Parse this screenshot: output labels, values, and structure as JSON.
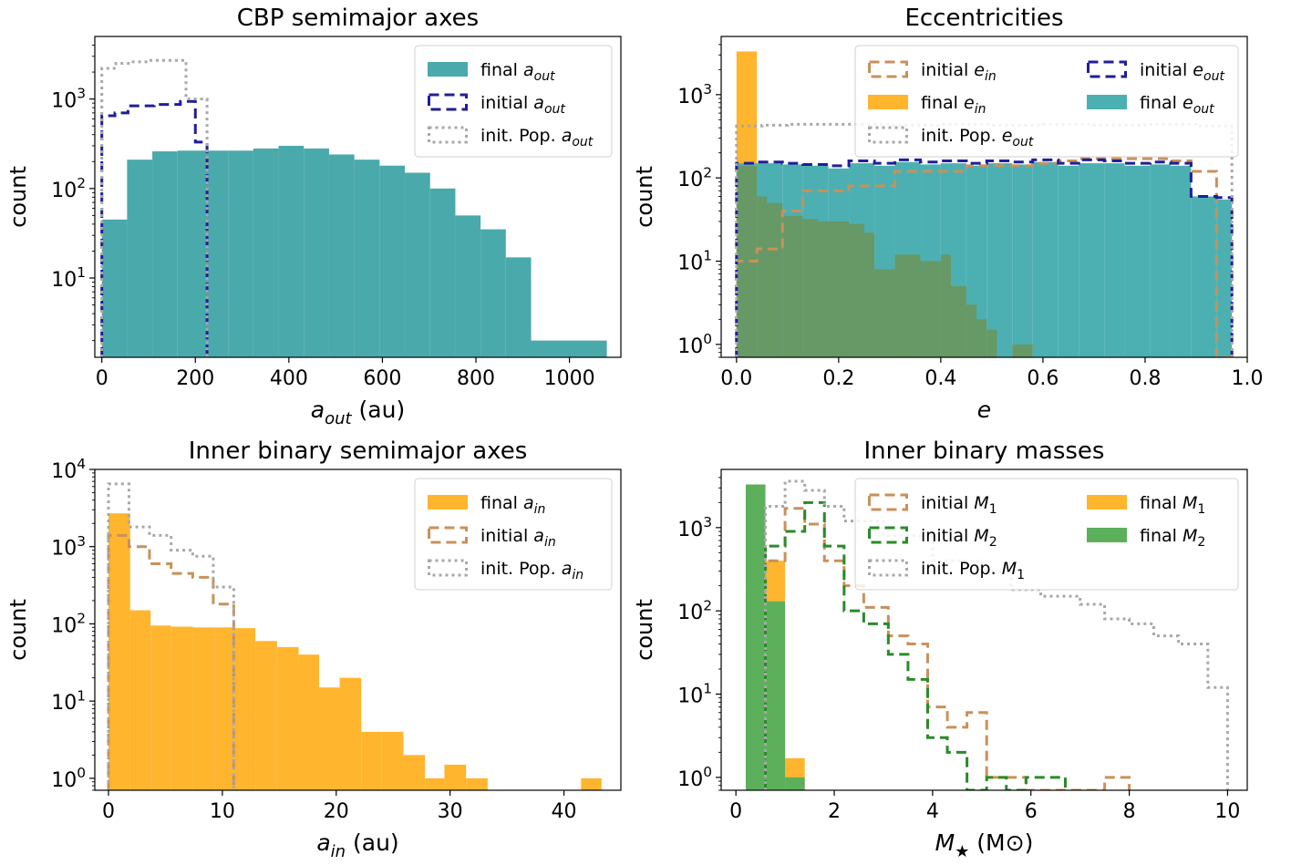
{
  "chart_data": [
    {
      "type": "histogram",
      "title": "CBP semimajor axes",
      "xlabel": {
        "base": "a",
        "sub": "out",
        "unit": " (au)"
      },
      "ylabel": "count",
      "xlim": [
        -15,
        1110
      ],
      "ylim": [
        1.3,
        5000
      ],
      "yscale": "log",
      "xticks": [
        0,
        200,
        400,
        600,
        800,
        1000
      ],
      "yticks": [
        10,
        100,
        1000
      ],
      "legend": {
        "position": "top-right",
        "columns": 1
      },
      "series": [
        {
          "name": "final",
          "sub": "out",
          "kind": "fill",
          "color": "#4aa9ab",
          "edges": [
            0,
            54,
            108,
            162,
            216,
            270,
            324,
            378,
            432,
            486,
            540,
            594,
            648,
            702,
            756,
            810,
            864,
            918,
            1080
          ],
          "counts": [
            45,
            210,
            260,
            265,
            265,
            265,
            280,
            300,
            280,
            240,
            210,
            180,
            150,
            100,
            50,
            35,
            17,
            2
          ]
        },
        {
          "name": "initial",
          "sub": "out",
          "kind": "dashed",
          "color": "#1f1f99",
          "edges": [
            0,
            28,
            56,
            112,
            168,
            200,
            225
          ],
          "counts": [
            650,
            700,
            840,
            870,
            940,
            330
          ]
        },
        {
          "name": "init. Pop.",
          "sub": "out",
          "kind": "dotted",
          "color": "#a8a8a8",
          "edges": [
            0,
            30,
            60,
            100,
            140,
            180,
            200,
            225
          ],
          "counts": [
            2200,
            2500,
            2600,
            2700,
            2700,
            1000,
            1000
          ]
        }
      ]
    },
    {
      "type": "histogram",
      "title": "Eccentricities",
      "xlabel": {
        "base": "e",
        "sub": "",
        "unit": ""
      },
      "ylabel": "count",
      "xlim": [
        -0.03,
        1.0
      ],
      "ylim": [
        0.7,
        5000
      ],
      "yscale": "log",
      "xticks": [
        0.0,
        0.2,
        0.4,
        0.6,
        0.8,
        1.0
      ],
      "yticks": [
        1,
        10,
        100,
        1000
      ],
      "legend": {
        "position": "top-right",
        "columns": 2
      },
      "series": [
        {
          "name": "initial",
          "sub": "in",
          "kind": "dashed",
          "color": "#c8915a",
          "edges": [
            0,
            0.04,
            0.09,
            0.13,
            0.22,
            0.31,
            0.45,
            0.58,
            0.63,
            0.67,
            0.85,
            0.89,
            0.94,
            0.97
          ],
          "counts": [
            10,
            14,
            40,
            70,
            80,
            120,
            140,
            150,
            160,
            170,
            160,
            120,
            0.7
          ]
        },
        {
          "name": "initial",
          "sub": "out",
          "kind": "dashed",
          "color": "#1f1f99",
          "edges": [
            0,
            0.04,
            0.09,
            0.13,
            0.18,
            0.22,
            0.27,
            0.31,
            0.36,
            0.4,
            0.45,
            0.49,
            0.54,
            0.58,
            0.63,
            0.67,
            0.72,
            0.76,
            0.81,
            0.85,
            0.89,
            0.94,
            0.97
          ],
          "counts": [
            150,
            155,
            150,
            145,
            140,
            160,
            150,
            165,
            155,
            160,
            150,
            160,
            155,
            165,
            150,
            165,
            160,
            150,
            155,
            150,
            60,
            58
          ]
        },
        {
          "name": "init. Pop.",
          "sub": "out",
          "kind": "dotted",
          "color": "#a8a8a8",
          "edges": [
            0,
            0.05,
            0.1,
            0.2,
            0.3,
            0.4,
            0.5,
            0.6,
            0.7,
            0.8,
            0.9,
            0.95,
            0.97
          ],
          "counts": [
            420,
            430,
            440,
            440,
            430,
            440,
            430,
            440,
            430,
            440,
            420,
            420
          ]
        },
        {
          "name": "final",
          "sub": "in",
          "kind": "fill",
          "color": "#ffb52e",
          "edges": [
            0,
            0.04
          ],
          "counts": [
            3300
          ]
        },
        {
          "name": "final",
          "sub": "out",
          "kind": "fill",
          "color": "#4cb0b3",
          "edges": [
            0,
            0.04,
            0.09,
            0.13,
            0.18,
            0.22,
            0.27,
            0.31,
            0.36,
            0.4,
            0.45,
            0.49,
            0.54,
            0.58,
            0.63,
            0.67,
            0.72,
            0.76,
            0.81,
            0.85,
            0.89,
            0.94,
            0.97
          ],
          "counts": [
            150,
            150,
            145,
            140,
            130,
            150,
            140,
            155,
            145,
            150,
            140,
            150,
            145,
            155,
            140,
            150,
            150,
            140,
            145,
            140,
            60,
            55
          ]
        }
      ],
      "overlap": {
        "color": "#669966",
        "edges": [
          0,
          0.04,
          0.06,
          0.09,
          0.13,
          0.16,
          0.22,
          0.25,
          0.27,
          0.31,
          0.36,
          0.4,
          0.42,
          0.45,
          0.47,
          0.49,
          0.51,
          0.54,
          0.56,
          0.58
        ],
        "counts": [
          140,
          60,
          50,
          35,
          32,
          30,
          28,
          22,
          8,
          12,
          10,
          12,
          5,
          3,
          2,
          1.5,
          0.7,
          1,
          1
        ]
      }
    },
    {
      "type": "histogram",
      "title": "Inner binary semimajor axes",
      "xlabel": {
        "base": "a",
        "sub": "in",
        "unit": " (au)"
      },
      "ylabel": "count",
      "xlim": [
        -1.2,
        45
      ],
      "ylim": [
        0.7,
        10000
      ],
      "yscale": "log",
      "xticks": [
        0,
        10,
        20,
        30,
        40
      ],
      "yticks": [
        1,
        10,
        100,
        1000,
        10000
      ],
      "legend": {
        "position": "top-right",
        "columns": 1
      },
      "series": [
        {
          "name": "final",
          "sub": "in",
          "kind": "fill",
          "color": "#ffb52e",
          "edges": [
            0,
            1.9,
            3.7,
            5.5,
            7.4,
            9.3,
            11,
            12.9,
            14.8,
            16.7,
            18.5,
            20.3,
            22.2,
            24,
            25.9,
            27.8,
            29.5,
            31.4,
            33.3,
            34.3,
            41.5,
            43.3
          ],
          "counts": [
            2700,
            150,
            95,
            92,
            90,
            90,
            88,
            60,
            50,
            40,
            15,
            20,
            4,
            4,
            2,
            1,
            1.5,
            1,
            0.7,
            0.7,
            1
          ]
        },
        {
          "name": "initial",
          "sub": "in",
          "kind": "dashed",
          "color": "#c8915a",
          "edges": [
            0,
            1.8,
            3.6,
            5.5,
            7.4,
            9.2,
            11
          ],
          "counts": [
            1400,
            1000,
            600,
            450,
            400,
            180
          ]
        },
        {
          "name": "init. Pop.",
          "sub": "in",
          "kind": "dotted",
          "color": "#a8a8a8",
          "edges": [
            0,
            1.8,
            3.6,
            5.5,
            7.4,
            9.2,
            11
          ],
          "counts": [
            6500,
            1800,
            1400,
            900,
            750,
            300
          ]
        }
      ]
    },
    {
      "type": "histogram",
      "title": "Inner binary masses",
      "xlabel": {
        "base": "M",
        "sub": "★",
        "unit": " (M⊙)"
      },
      "ylabel": "count",
      "xlim": [
        -0.3,
        10.4
      ],
      "ylim": [
        0.7,
        5000
      ],
      "yscale": "log",
      "xticks": [
        0,
        2,
        4,
        6,
        8,
        10
      ],
      "yticks": [
        1,
        10,
        100,
        1000
      ],
      "legend": {
        "position": "top-right",
        "columns": 2
      },
      "series": [
        {
          "name": "initial",
          "sub": "1",
          "kind": "dashed",
          "color": "#c8915a",
          "edges": [
            0.6,
            1.0,
            1.4,
            1.8,
            2.2,
            2.6,
            3.1,
            3.5,
            3.9,
            4.3,
            4.7,
            5.1,
            5.5,
            5.9,
            7.5,
            8
          ],
          "counts": [
            400,
            1700,
            1100,
            400,
            200,
            110,
            50,
            40,
            7,
            4,
            6,
            1,
            1,
            0.7,
            1
          ]
        },
        {
          "name": "initial",
          "sub": "2",
          "kind": "dashed",
          "color": "#2a8a2a",
          "edges": [
            0.6,
            1.0,
            1.4,
            1.8,
            2.2,
            2.6,
            3.1,
            3.5,
            3.9,
            4.3,
            4.7,
            5.1,
            5.5,
            5.9,
            6.3,
            6.7
          ],
          "counts": [
            600,
            900,
            2000,
            600,
            100,
            70,
            30,
            15,
            3,
            2,
            0.7,
            1,
            0.7,
            1,
            1
          ]
        },
        {
          "name": "init. Pop.",
          "sub": "1",
          "kind": "dotted",
          "color": "#a8a8a8",
          "edges": [
            0.6,
            1.0,
            1.4,
            1.8,
            2.2,
            3.0,
            4.0,
            5.0,
            5.6,
            6.2,
            7.0,
            7.5,
            8.0,
            8.5,
            9.0,
            9.6,
            10
          ],
          "counts": [
            1800,
            3600,
            2800,
            1800,
            1200,
            800,
            400,
            300,
            180,
            150,
            120,
            80,
            70,
            50,
            40,
            12
          ]
        },
        {
          "name": "final",
          "sub": "1",
          "kind": "fill",
          "color": "#ffb52e",
          "edges": [
            0.6,
            1.0,
            1.4
          ],
          "counts": [
            400,
            1.7
          ]
        },
        {
          "name": "final",
          "sub": "2",
          "kind": "fill",
          "color": "#5cb05c",
          "edges": [
            0.2,
            0.6,
            1.0,
            1.4
          ],
          "counts": [
            3300,
            130,
            1
          ]
        }
      ]
    }
  ]
}
